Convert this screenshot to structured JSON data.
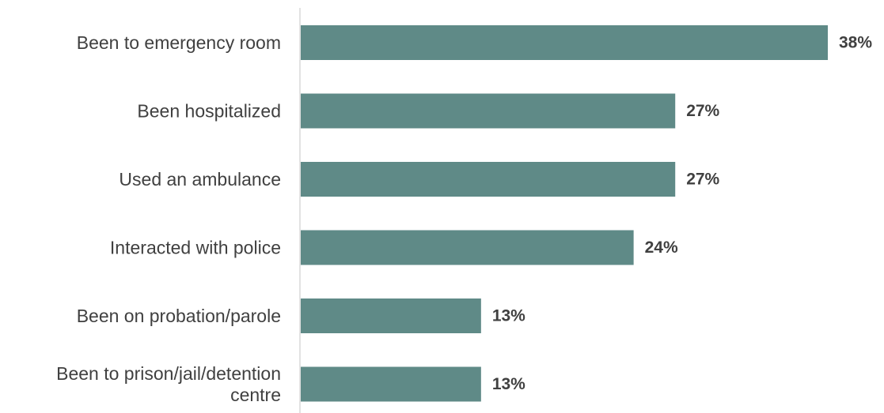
{
  "chart_data": {
    "type": "bar",
    "orientation": "horizontal",
    "categories": [
      [
        "Been to emergency room"
      ],
      [
        "Been hospitalized"
      ],
      [
        "Used an ambulance"
      ],
      [
        "Interacted with police"
      ],
      [
        "Been on probation/parole"
      ],
      [
        "Been to prison/jail/detention",
        "centre"
      ]
    ],
    "values": [
      38,
      27,
      27,
      24,
      13,
      13
    ],
    "value_labels": [
      "38%",
      "27%",
      "27%",
      "24%",
      "13%",
      "13%"
    ],
    "unit": "%",
    "xlim": [
      0,
      38
    ],
    "grid": false,
    "legend": "none",
    "bar_color": "#5f8a87",
    "axis_color": "#d9d9d9",
    "text_color": "#404040"
  }
}
